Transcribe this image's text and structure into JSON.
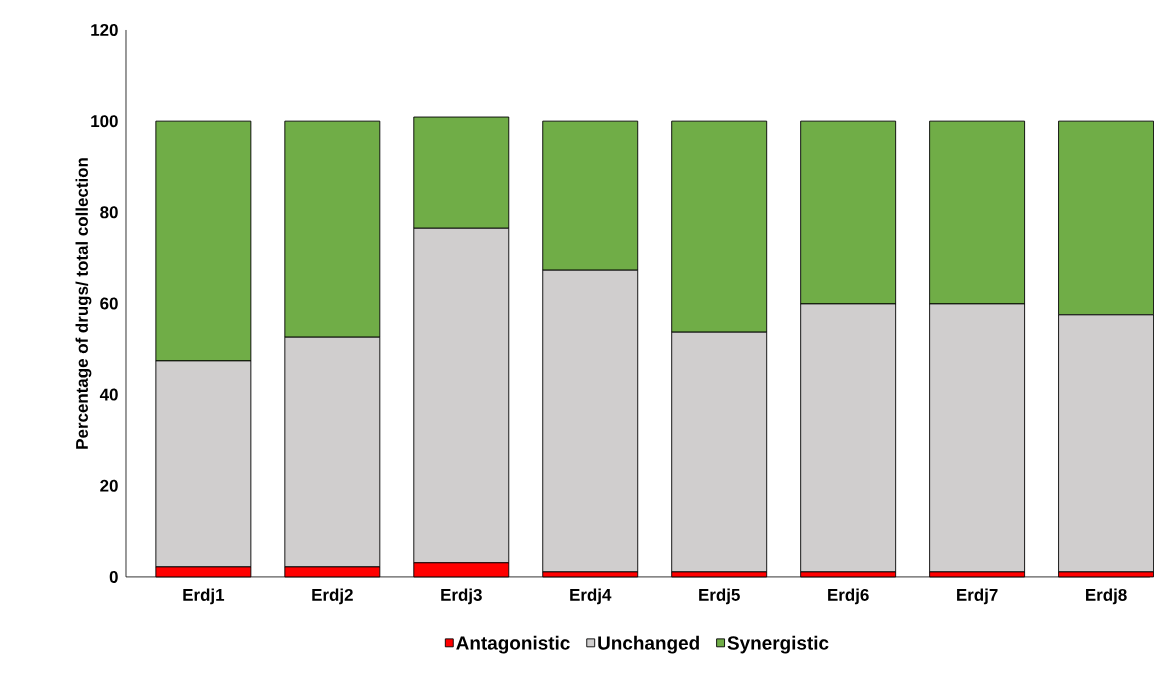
{
  "chart_data": {
    "type": "bar",
    "stacked": true,
    "ylabel": "Percentage of drugs/ total collection",
    "categories": [
      "Erdj1",
      "Erdj2",
      "Erdj3",
      "Erdj4",
      "Erdj5",
      "Erdj6",
      "Erdj7",
      "Erdj8"
    ],
    "series": [
      {
        "name": "Antagonistic",
        "color": "#ff0000",
        "values": [
          2.2,
          2.2,
          3.1,
          1.1,
          1.1,
          1.1,
          1.1,
          1.1
        ]
      },
      {
        "name": "Unchanged",
        "color": "#d0cece",
        "values": [
          45.2,
          50.4,
          73.4,
          66.2,
          52.6,
          58.8,
          58.8,
          56.4
        ]
      },
      {
        "name": "Synergistic",
        "color": "#70ad47",
        "values": [
          52.6,
          47.4,
          24.4,
          32.7,
          46.3,
          40.1,
          40.1,
          42.5
        ]
      }
    ],
    "ylim": [
      0,
      120
    ],
    "yticks": [
      0,
      20,
      40,
      60,
      80,
      100,
      120
    ],
    "grid": false,
    "legend": "bottom"
  }
}
